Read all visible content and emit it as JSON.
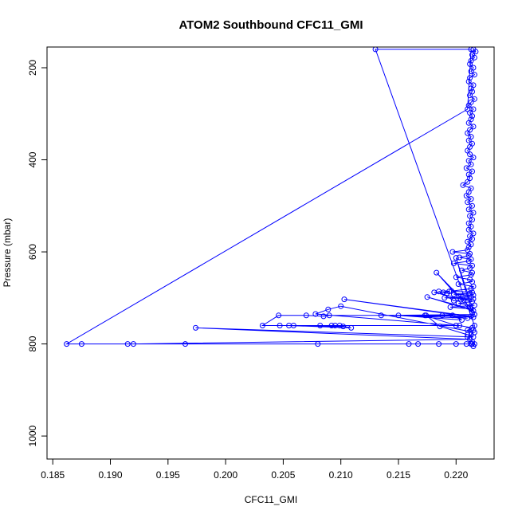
{
  "chart_data": {
    "type": "line",
    "title": "ATOM2 Southbound CFC11_GMI",
    "xlabel": "CFC11_GMI",
    "ylabel": "Pressure (mbar)",
    "xlim": [
      0.1845,
      0.2233
    ],
    "ylim": [
      1050,
      155
    ],
    "y_reversed": true,
    "grid": false,
    "x_ticks": [
      0.185,
      0.19,
      0.195,
      0.2,
      0.205,
      0.21,
      0.215,
      0.22
    ],
    "x_tick_labels": [
      "0.185",
      "0.190",
      "0.195",
      "0.200",
      "0.205",
      "0.210",
      "0.215",
      "0.220"
    ],
    "y_ticks": [
      200,
      400,
      600,
      800,
      1000
    ],
    "y_tick_labels": [
      "200",
      "400",
      "600",
      "800",
      "1000"
    ],
    "series": [
      {
        "color": "#0000ff",
        "marker": "open-circle",
        "x": [
          0.2215,
          0.2217,
          0.2214,
          0.2216,
          0.2213,
          0.2212,
          0.2215,
          0.2213,
          0.2216,
          0.2212,
          0.2211,
          0.2215,
          0.2213,
          0.2214,
          0.2212,
          0.2216,
          0.2213,
          0.2211,
          0.2215,
          0.2212,
          0.2214,
          0.2213,
          0.2211,
          0.2215,
          0.2212,
          0.221,
          0.2213,
          0.2211,
          0.2214,
          0.2212,
          0.221,
          0.2212,
          0.2215,
          0.2211,
          0.2213,
          0.2209,
          0.2214,
          0.2211,
          0.2212,
          0.221,
          0.2206,
          0.2213,
          0.2211,
          0.2209,
          0.2213,
          0.221,
          0.2214,
          0.2211,
          0.2215,
          0.2212,
          0.2214,
          0.2211,
          0.2213,
          0.2211,
          0.2215,
          0.2212,
          0.2214,
          0.221,
          0.2213,
          0.2211,
          0.221,
          0.2197,
          0.2212,
          0.2211,
          0.2203,
          0.2213,
          0.2211,
          0.2198,
          0.2214,
          0.2212,
          0.2205,
          0.2214,
          0.2213,
          0.22,
          0.2212,
          0.2214,
          0.2202,
          0.2215,
          0.2213,
          0.2196,
          0.2214,
          0.2212,
          0.2198,
          0.2215,
          0.2202,
          0.2213,
          0.219,
          0.2215,
          0.2204,
          0.2198,
          0.2185,
          0.2189,
          0.2192,
          0.2194,
          0.2181,
          0.2214,
          0.2202,
          0.2216,
          0.2195,
          0.2213,
          0.2175,
          0.2215,
          0.2183,
          0.2214,
          0.22,
          0.2216,
          0.2135,
          0.2213,
          0.2103,
          0.2215,
          0.2188,
          0.221,
          0.215,
          0.2205,
          0.2197,
          0.209,
          0.2085,
          0.207,
          0.2046,
          0.2032,
          0.2095,
          0.2102,
          0.2059,
          0.2082,
          0.2092,
          0.2099,
          0.2109,
          0.2055,
          0.2047,
          0.2203,
          0.2214,
          0.221,
          0.2216,
          0.21,
          0.2089,
          0.2078,
          0.22,
          0.2173,
          0.2174,
          0.2186,
          0.221,
          0.2215,
          0.1974,
          0.2212,
          0.192,
          0.1915,
          0.208,
          0.1965,
          0.2159,
          0.2167,
          0.22,
          0.2185,
          0.2209,
          0.2213,
          0.2214,
          0.1875,
          0.1862,
          0.221,
          0.2213,
          0.213,
          0.2216,
          0.2215,
          0.2213,
          0.221,
          0.2212,
          0.2214,
          0.2216,
          0.2215
        ],
        "y": [
          160,
          165,
          172,
          178,
          185,
          192,
          200,
          208,
          215,
          222,
          230,
          238,
          245,
          252,
          260,
          268,
          275,
          282,
          290,
          298,
          305,
          312,
          320,
          328,
          335,
          342,
          350,
          358,
          365,
          372,
          380,
          388,
          395,
          402,
          410,
          418,
          425,
          432,
          440,
          448,
          455,
          462,
          470,
          478,
          485,
          492,
          500,
          508,
          515,
          522,
          530,
          538,
          545,
          552,
          560,
          566,
          572,
          578,
          584,
          590,
          596,
          600,
          604,
          608,
          612,
          616,
          620,
          625,
          630,
          635,
          640,
          645,
          650,
          655,
          660,
          665,
          670,
          675,
          680,
          685,
          688,
          690,
          692,
          694,
          696,
          698,
          700,
          702,
          704,
          706,
          686,
          688,
          690,
          686,
          688,
          708,
          712,
          716,
          720,
          724,
          698,
          728,
          645,
          732,
          613,
          736,
          738,
          740,
          703,
          742,
          738,
          744,
          738,
          748,
          738,
          738,
          740,
          738,
          738,
          760,
          760,
          762,
          760,
          760,
          760,
          760,
          765,
          760,
          760,
          760,
          765,
          770,
          775,
          718,
          725,
          735,
          760,
          738,
          738,
          762,
          780,
          785,
          765,
          790,
          800,
          800,
          800,
          800,
          800,
          800,
          800,
          800,
          800,
          800,
          800,
          800,
          800,
          290,
          160,
          160,
          760,
          770,
          780,
          785,
          790,
          795,
          800,
          805
        ]
      }
    ]
  }
}
